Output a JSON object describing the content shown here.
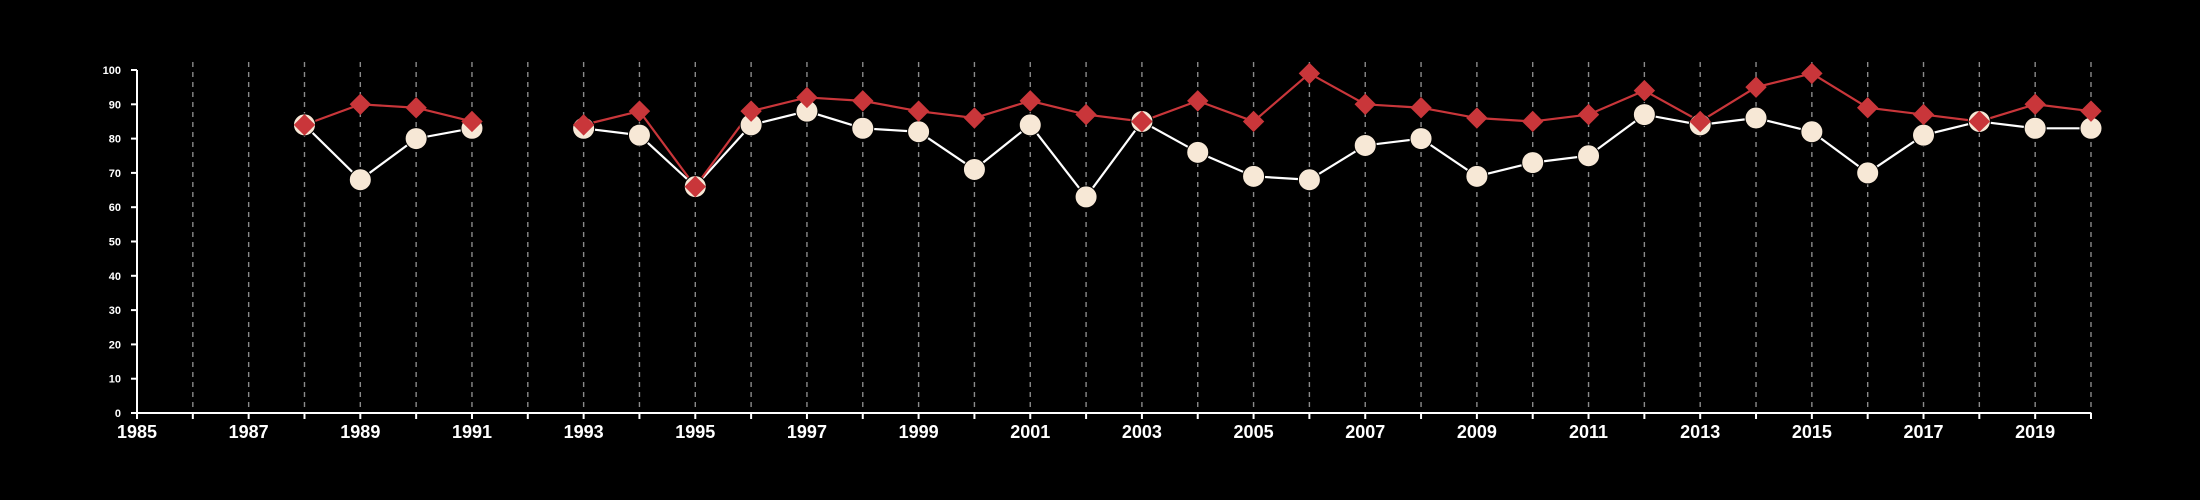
{
  "chart_data": {
    "type": "line",
    "title": "",
    "xlabel": "",
    "ylabel": "",
    "xlim": [
      1985,
      2020
    ],
    "ylim": [
      0,
      100
    ],
    "grid": "vertical dashed lines at each year",
    "legend": "none",
    "background_color": "#000000",
    "axis_color": "#ffffff",
    "x_ticks": [
      1985,
      1987,
      1989,
      1991,
      1993,
      1995,
      1997,
      1999,
      2001,
      2003,
      2005,
      2007,
      2009,
      2011,
      2013,
      2015,
      2017,
      2019
    ],
    "y_ticks": [
      0,
      10,
      20,
      30,
      40,
      50,
      60,
      70,
      80,
      90,
      100
    ],
    "series": [
      {
        "color": "#ffffff",
        "marker": "circle",
        "marker_fill": "#f7e8d6",
        "points": [
          {
            "x": 1988,
            "y": 84
          },
          {
            "x": 1989,
            "y": 68
          },
          {
            "x": 1990,
            "y": 80
          },
          {
            "x": 1991,
            "y": 83
          },
          {
            "x": 1993,
            "y": 83
          },
          {
            "x": 1994,
            "y": 81
          },
          {
            "x": 1995,
            "y": 66
          },
          {
            "x": 1996,
            "y": 84
          },
          {
            "x": 1997,
            "y": 88
          },
          {
            "x": 1998,
            "y": 83
          },
          {
            "x": 1999,
            "y": 82
          },
          {
            "x": 2000,
            "y": 71
          },
          {
            "x": 2001,
            "y": 84
          },
          {
            "x": 2002,
            "y": 63
          },
          {
            "x": 2003,
            "y": 85
          },
          {
            "x": 2004,
            "y": 76
          },
          {
            "x": 2005,
            "y": 69
          },
          {
            "x": 2006,
            "y": 68
          },
          {
            "x": 2007,
            "y": 78
          },
          {
            "x": 2008,
            "y": 80
          },
          {
            "x": 2009,
            "y": 69
          },
          {
            "x": 2010,
            "y": 73
          },
          {
            "x": 2011,
            "y": 75
          },
          {
            "x": 2012,
            "y": 87
          },
          {
            "x": 2013,
            "y": 84
          },
          {
            "x": 2014,
            "y": 86
          },
          {
            "x": 2015,
            "y": 82
          },
          {
            "x": 2016,
            "y": 70
          },
          {
            "x": 2017,
            "y": 81
          },
          {
            "x": 2018,
            "y": 85
          },
          {
            "x": 2019,
            "y": 83
          },
          {
            "x": 2020,
            "y": 83
          }
        ]
      },
      {
        "color": "#c9363a",
        "marker": "diamond",
        "marker_fill": "#c9363a",
        "points": [
          {
            "x": 1988,
            "y": 84
          },
          {
            "x": 1989,
            "y": 90
          },
          {
            "x": 1990,
            "y": 89
          },
          {
            "x": 1991,
            "y": 85
          },
          {
            "x": 1993,
            "y": 84
          },
          {
            "x": 1994,
            "y": 88
          },
          {
            "x": 1995,
            "y": 66
          },
          {
            "x": 1996,
            "y": 88
          },
          {
            "x": 1997,
            "y": 92
          },
          {
            "x": 1998,
            "y": 91
          },
          {
            "x": 1999,
            "y": 88
          },
          {
            "x": 2000,
            "y": 86
          },
          {
            "x": 2001,
            "y": 91
          },
          {
            "x": 2002,
            "y": 87
          },
          {
            "x": 2003,
            "y": 85
          },
          {
            "x": 2004,
            "y": 91
          },
          {
            "x": 2005,
            "y": 85
          },
          {
            "x": 2006,
            "y": 99
          },
          {
            "x": 2007,
            "y": 90
          },
          {
            "x": 2008,
            "y": 89
          },
          {
            "x": 2009,
            "y": 86
          },
          {
            "x": 2010,
            "y": 85
          },
          {
            "x": 2011,
            "y": 87
          },
          {
            "x": 2012,
            "y": 94
          },
          {
            "x": 2013,
            "y": 85
          },
          {
            "x": 2014,
            "y": 95
          },
          {
            "x": 2015,
            "y": 99
          },
          {
            "x": 2016,
            "y": 89
          },
          {
            "x": 2017,
            "y": 87
          },
          {
            "x": 2018,
            "y": 85
          },
          {
            "x": 2019,
            "y": 90
          },
          {
            "x": 2020,
            "y": 88
          }
        ]
      }
    ]
  }
}
